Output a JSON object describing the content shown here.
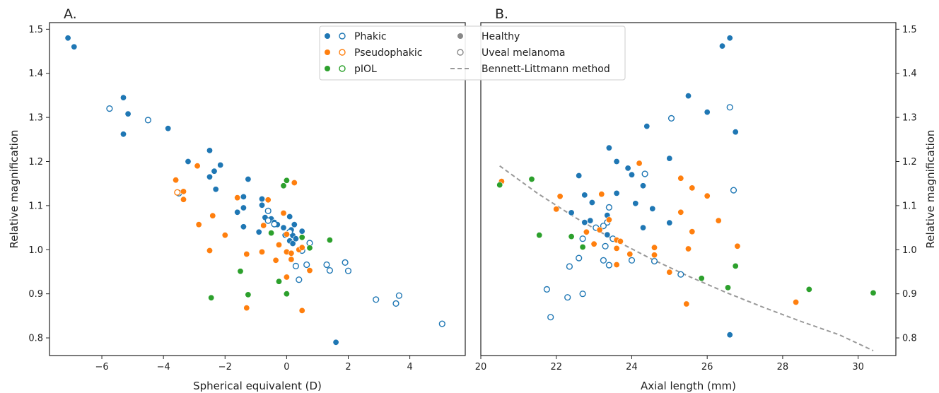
{
  "panels": {
    "a_label": "A.",
    "b_label": "B."
  },
  "legend": {
    "phakic": "Phakic",
    "pseudophakic": "Pseudophakic",
    "piol": "pIOL",
    "healthy": "Healthy",
    "uveal_melanoma": "Uveal melanoma",
    "bennett": "Bennett-Littmann method"
  },
  "colors": {
    "phakic": "#1f77b4",
    "pseudophakic": "#ff7f0e",
    "piol": "#2ca02c",
    "gray": "#888888",
    "bennett": "#999999"
  },
  "chart_data": [
    {
      "type": "scatter",
      "panel": "A.",
      "xlabel": "Spherical equivalent (D)",
      "ylabel": "Relative magnification",
      "xlim": [
        -7.7,
        5.8
      ],
      "ylim": [
        0.76,
        1.515
      ],
      "xticks": [
        -6,
        -4,
        -2,
        0,
        2,
        4
      ],
      "yticks": [
        0.8,
        0.9,
        1.0,
        1.1,
        1.2,
        1.3,
        1.4,
        1.5
      ],
      "grid": false,
      "legend": "top-right",
      "series": [
        {
          "name": "Phakic",
          "status": "Healthy",
          "filled": true,
          "group": "phakic",
          "points": [
            [
              -7.1,
              1.48
            ],
            [
              -6.9,
              1.46
            ],
            [
              -5.3,
              1.345
            ],
            [
              -5.15,
              1.308
            ],
            [
              -5.3,
              1.262
            ],
            [
              -3.85,
              1.275
            ],
            [
              -3.2,
              1.2
            ],
            [
              -2.5,
              1.225
            ],
            [
              -2.35,
              1.178
            ],
            [
              -2.5,
              1.165
            ],
            [
              -2.15,
              1.192
            ],
            [
              -2.3,
              1.137
            ],
            [
              -1.25,
              1.16
            ],
            [
              -1.4,
              1.12
            ],
            [
              -1.6,
              1.085
            ],
            [
              -1.4,
              1.095
            ],
            [
              -1.4,
              1.052
            ],
            [
              -0.8,
              1.115
            ],
            [
              -0.8,
              1.101
            ],
            [
              -0.7,
              1.073
            ],
            [
              -0.9,
              1.04
            ],
            [
              -0.5,
              1.07
            ],
            [
              -0.4,
              1.062
            ],
            [
              -0.3,
              1.057
            ],
            [
              -0.1,
              1.05
            ],
            [
              0.1,
              1.075
            ],
            [
              0.15,
              1.045
            ],
            [
              0.25,
              1.057
            ],
            [
              0.2,
              1.032
            ],
            [
              0.1,
              1.02
            ],
            [
              0.2,
              1.014
            ],
            [
              -0.05,
              1.033
            ],
            [
              0.3,
              1.025
            ],
            [
              0.5,
              1.042
            ],
            [
              1.6,
              0.79
            ]
          ]
        },
        {
          "name": "Phakic",
          "status": "Uveal melanoma",
          "filled": false,
          "group": "phakic",
          "points": [
            [
              -5.75,
              1.32
            ],
            [
              -4.5,
              1.294
            ],
            [
              -3.5,
              1.128
            ],
            [
              -0.6,
              1.088
            ],
            [
              -0.6,
              1.066
            ],
            [
              -0.4,
              1.058
            ],
            [
              0.1,
              1.04
            ],
            [
              0.5,
              0.998
            ],
            [
              0.75,
              1.015
            ],
            [
              0.3,
              0.963
            ],
            [
              0.4,
              0.932
            ],
            [
              0.65,
              0.966
            ],
            [
              1.3,
              0.966
            ],
            [
              1.4,
              0.953
            ],
            [
              1.9,
              0.971
            ],
            [
              2.0,
              0.952
            ],
            [
              2.9,
              0.887
            ],
            [
              3.55,
              0.878
            ],
            [
              3.65,
              0.896
            ],
            [
              5.05,
              0.832
            ]
          ]
        },
        {
          "name": "Pseudophakic",
          "status": "Healthy",
          "filled": true,
          "group": "pseudophakic",
          "points": [
            [
              -3.6,
              1.158
            ],
            [
              -3.35,
              1.132
            ],
            [
              -3.35,
              1.114
            ],
            [
              -2.9,
              1.19
            ],
            [
              -2.4,
              1.077
            ],
            [
              -2.85,
              1.057
            ],
            [
              -2.5,
              0.998
            ],
            [
              -2.0,
              1.033
            ],
            [
              -1.6,
              1.118
            ],
            [
              -1.3,
              0.99
            ],
            [
              -1.3,
              0.868
            ],
            [
              -0.6,
              1.113
            ],
            [
              -0.75,
              1.055
            ],
            [
              -0.8,
              0.995
            ],
            [
              -0.35,
              0.976
            ],
            [
              -0.25,
              1.011
            ],
            [
              -0.1,
              1.083
            ],
            [
              0.0,
              1.035
            ],
            [
              0.0,
              0.995
            ],
            [
              0.15,
              0.992
            ],
            [
              0.15,
              0.978
            ],
            [
              0.25,
              1.152
            ],
            [
              0.4,
              1.0
            ],
            [
              0.5,
              1.005
            ],
            [
              0.5,
              0.862
            ],
            [
              0.75,
              0.953
            ],
            [
              0.0,
              0.938
            ]
          ]
        },
        {
          "name": "Pseudophakic",
          "status": "Uveal melanoma",
          "filled": false,
          "group": "pseudophakic",
          "points": [
            [
              -3.55,
              1.13
            ]
          ]
        },
        {
          "name": "pIOL",
          "status": "Healthy",
          "filled": true,
          "group": "piol",
          "points": [
            [
              -2.45,
              0.891
            ],
            [
              -1.5,
              0.951
            ],
            [
              -1.25,
              0.898
            ],
            [
              -0.5,
              1.038
            ],
            [
              -0.25,
              0.928
            ],
            [
              0.0,
              0.9
            ],
            [
              -0.1,
              1.145
            ],
            [
              0.0,
              1.157
            ],
            [
              0.5,
              1.028
            ],
            [
              0.75,
              1.004
            ],
            [
              1.4,
              1.022
            ]
          ]
        },
        {
          "name": "pIOL",
          "status": "Uveal melanoma",
          "filled": false,
          "group": "piol",
          "points": []
        }
      ]
    },
    {
      "type": "scatter",
      "panel": "B.",
      "xlabel": "Axial length (mm)",
      "ylabel": "Relative magnification",
      "xlim": [
        20,
        31.0
      ],
      "ylim": [
        0.76,
        1.515
      ],
      "xticks": [
        20,
        22,
        24,
        26,
        28,
        30
      ],
      "yticks": [
        0.8,
        0.9,
        1.0,
        1.1,
        1.2,
        1.3,
        1.4,
        1.5
      ],
      "y_axis_side": "right",
      "grid": false,
      "series": [
        {
          "name": "Phakic",
          "status": "Healthy",
          "filled": true,
          "group": "phakic",
          "points": [
            [
              26.6,
              1.48
            ],
            [
              26.4,
              1.462
            ],
            [
              25.5,
              1.349
            ],
            [
              26.0,
              1.312
            ],
            [
              26.75,
              1.267
            ],
            [
              24.4,
              1.28
            ],
            [
              25.0,
              1.207
            ],
            [
              23.4,
              1.231
            ],
            [
              23.6,
              1.2
            ],
            [
              23.9,
              1.185
            ],
            [
              24.0,
              1.17
            ],
            [
              24.3,
              1.145
            ],
            [
              22.6,
              1.168
            ],
            [
              23.6,
              1.128
            ],
            [
              22.75,
              1.124
            ],
            [
              22.95,
              1.107
            ],
            [
              22.4,
              1.084
            ],
            [
              22.75,
              1.062
            ],
            [
              22.9,
              1.066
            ],
            [
              23.35,
              1.078
            ],
            [
              23.35,
              1.034
            ],
            [
              24.1,
              1.105
            ],
            [
              24.55,
              1.093
            ],
            [
              24.3,
              1.05
            ],
            [
              25.0,
              1.061
            ],
            [
              26.6,
              0.807
            ]
          ]
        },
        {
          "name": "Phakic",
          "status": "Uveal melanoma",
          "filled": false,
          "group": "phakic",
          "points": [
            [
              25.05,
              1.298
            ],
            [
              26.6,
              1.323
            ],
            [
              24.35,
              1.172
            ],
            [
              26.7,
              1.135
            ],
            [
              23.4,
              1.096
            ],
            [
              23.35,
              1.062
            ],
            [
              23.25,
              1.054
            ],
            [
              23.05,
              1.05
            ],
            [
              23.5,
              1.025
            ],
            [
              22.7,
              1.025
            ],
            [
              22.6,
              0.981
            ],
            [
              22.35,
              0.962
            ],
            [
              21.75,
              0.91
            ],
            [
              21.85,
              0.847
            ],
            [
              22.3,
              0.892
            ],
            [
              22.7,
              0.9
            ],
            [
              23.25,
              0.976
            ],
            [
              23.4,
              0.965
            ],
            [
              24.0,
              0.976
            ],
            [
              24.6,
              0.974
            ],
            [
              25.3,
              0.944
            ],
            [
              23.3,
              1.008
            ]
          ]
        },
        {
          "name": "Pseudophakic",
          "status": "Healthy",
          "filled": true,
          "group": "pseudophakic",
          "points": [
            [
              20.55,
              1.155
            ],
            [
              22.1,
              1.121
            ],
            [
              22.0,
              1.092
            ],
            [
              23.2,
              1.126
            ],
            [
              22.8,
              1.04
            ],
            [
              23.15,
              1.045
            ],
            [
              23.0,
              1.013
            ],
            [
              23.4,
              1.068
            ],
            [
              23.6,
              1.022
            ],
            [
              23.7,
              1.019
            ],
            [
              23.6,
              1.003
            ],
            [
              23.6,
              0.966
            ],
            [
              23.95,
              0.99
            ],
            [
              24.2,
              1.196
            ],
            [
              24.6,
              1.005
            ],
            [
              24.6,
              0.988
            ],
            [
              25.3,
              1.162
            ],
            [
              25.6,
              1.14
            ],
            [
              26.0,
              1.122
            ],
            [
              25.3,
              1.085
            ],
            [
              25.6,
              1.041
            ],
            [
              25.5,
              1.002
            ],
            [
              25.0,
              0.949
            ],
            [
              25.45,
              0.877
            ],
            [
              26.3,
              1.066
            ],
            [
              26.8,
              1.008
            ],
            [
              28.35,
              0.881
            ]
          ]
        },
        {
          "name": "Pseudophakic",
          "status": "Uveal melanoma",
          "filled": false,
          "group": "pseudophakic",
          "points": []
        },
        {
          "name": "pIOL",
          "status": "Healthy",
          "filled": true,
          "group": "piol",
          "points": [
            [
              20.5,
              1.147
            ],
            [
              21.35,
              1.16
            ],
            [
              21.55,
              1.033
            ],
            [
              22.4,
              1.03
            ],
            [
              22.7,
              1.006
            ],
            [
              25.85,
              0.935
            ],
            [
              26.55,
              0.914
            ],
            [
              26.75,
              0.963
            ],
            [
              28.7,
              0.91
            ],
            [
              30.4,
              0.902
            ]
          ]
        },
        {
          "name": "pIOL",
          "status": "Uveal melanoma",
          "filled": false,
          "group": "piol",
          "points": []
        },
        {
          "name": "Bennett-Littmann method",
          "type": "line",
          "dashed": true,
          "group": "bennett",
          "points": [
            [
              20.5,
              1.19
            ],
            [
              21.5,
              1.128
            ],
            [
              22.5,
              1.073
            ],
            [
              23.5,
              1.024
            ],
            [
              24.5,
              0.98
            ],
            [
              25.5,
              0.94
            ],
            [
              26.5,
              0.903
            ],
            [
              27.5,
              0.869
            ],
            [
              28.5,
              0.837
            ],
            [
              29.5,
              0.807
            ],
            [
              30.4,
              0.771
            ]
          ]
        }
      ]
    }
  ]
}
